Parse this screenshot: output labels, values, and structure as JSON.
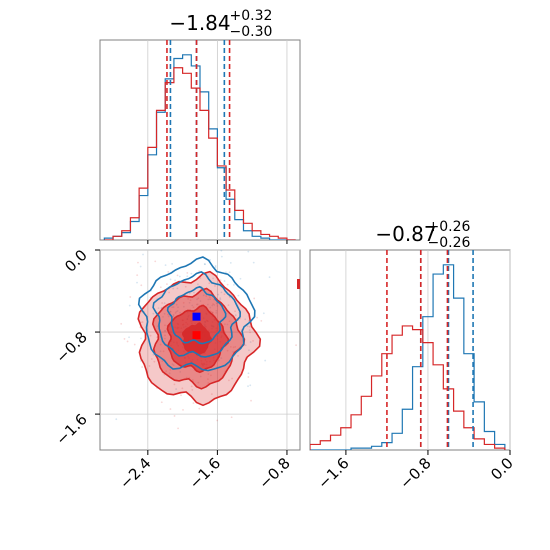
{
  "colors": {
    "series_a": "#1f77b4",
    "series_b": "#d62728",
    "truth_a": "#0000ff",
    "truth_b": "#ff0000",
    "grid": "#cccccc",
    "frame": "#808080"
  },
  "titles": {
    "x1": {
      "median": "−1.84",
      "plus": "+0.32",
      "minus": "−0.30"
    },
    "x2": {
      "median": "−0.87",
      "plus": "+0.26",
      "minus": "−0.26"
    }
  },
  "chart_data": [
    {
      "type": "histogram",
      "panel": "x1-marginal",
      "xlim": [
        -2.95,
        -0.65
      ],
      "x": [
        -2.85,
        -2.75,
        -2.65,
        -2.55,
        -2.45,
        -2.35,
        -2.25,
        -2.15,
        -2.05,
        -1.95,
        -1.85,
        -1.75,
        -1.65,
        -1.55,
        -1.45,
        -1.35,
        -1.25,
        -1.15,
        -1.05,
        -0.95,
        -0.85,
        -0.75
      ],
      "series": [
        {
          "name": "",
          "color": "series_a",
          "values": [
            0.01,
            0.02,
            0.04,
            0.1,
            0.24,
            0.46,
            0.69,
            0.87,
            0.98,
            1.0,
            0.94,
            0.8,
            0.6,
            0.39,
            0.22,
            0.11,
            0.05,
            0.02,
            0.01,
            0.0,
            0.0,
            0.0
          ]
        },
        {
          "name": "",
          "color": "series_b",
          "values": [
            0.0,
            0.02,
            0.05,
            0.12,
            0.28,
            0.5,
            0.7,
            0.85,
            0.93,
            0.9,
            0.82,
            0.7,
            0.55,
            0.4,
            0.27,
            0.16,
            0.09,
            0.05,
            0.03,
            0.02,
            0.01,
            0.0
          ]
        }
      ],
      "quantiles": {
        "series_a": [
          -2.14,
          -1.84,
          -1.52
        ],
        "series_b": [
          -2.18,
          -1.84,
          -1.46
        ]
      }
    },
    {
      "type": "histogram",
      "panel": "x2-marginal",
      "xlim": [
        -1.95,
        0.0
      ],
      "xticks": [
        -1.6,
        -0.8,
        0.0
      ],
      "x": [
        -1.9,
        -1.8,
        -1.7,
        -1.6,
        -1.5,
        -1.4,
        -1.3,
        -1.2,
        -1.1,
        -1.0,
        -0.9,
        -0.8,
        -0.7,
        -0.6,
        -0.5,
        -0.4,
        -0.3,
        -0.2,
        -0.1
      ],
      "series": [
        {
          "name": "",
          "color": "series_a",
          "values": [
            0.0,
            0.0,
            0.0,
            0.0,
            0.01,
            0.01,
            0.02,
            0.04,
            0.09,
            0.22,
            0.45,
            0.72,
            0.95,
            1.0,
            0.82,
            0.52,
            0.26,
            0.1,
            0.03
          ]
        },
        {
          "name": "",
          "color": "series_b",
          "values": [
            0.03,
            0.05,
            0.08,
            0.12,
            0.19,
            0.29,
            0.4,
            0.52,
            0.62,
            0.67,
            0.65,
            0.58,
            0.46,
            0.33,
            0.21,
            0.12,
            0.06,
            0.03,
            0.01
          ]
        }
      ],
      "quantiles": {
        "series_a": [
          -0.87,
          -0.6,
          -0.36
        ],
        "series_b": [
          -1.2,
          -0.87,
          -0.61
        ]
      }
    },
    {
      "type": "contour",
      "panel": "joint",
      "xlim": [
        -2.95,
        -0.65
      ],
      "ylim": [
        -1.95,
        0.0
      ],
      "xticks": [
        -2.4,
        -1.6,
        -0.8
      ],
      "yticks": [
        0.0,
        -0.8,
        -1.6
      ],
      "series": [
        {
          "name": "",
          "color": "series_a",
          "center": [
            -1.84,
            -0.65
          ],
          "sigma": [
            0.31,
            0.26
          ],
          "levels_sigma": [
            0.5,
            1.0,
            1.5,
            2.0
          ]
        },
        {
          "name": "",
          "color": "series_b",
          "center": [
            -1.84,
            -0.87
          ],
          "sigma": [
            0.33,
            0.3
          ],
          "levels_sigma": [
            0.5,
            1.0,
            1.5,
            2.0
          ]
        }
      ],
      "markers": [
        {
          "color": "truth_a",
          "x": -1.84,
          "y": -0.65
        },
        {
          "color": "truth_b",
          "x": -1.84,
          "y": -0.83
        }
      ]
    }
  ],
  "ticks": {
    "x1": [
      "−2.4",
      "−1.6",
      "−0.8"
    ],
    "y_joint": [
      "0.0",
      "−0.8",
      "−1.6"
    ],
    "x2": [
      "−1.6",
      "−0.8",
      "0.0"
    ]
  }
}
